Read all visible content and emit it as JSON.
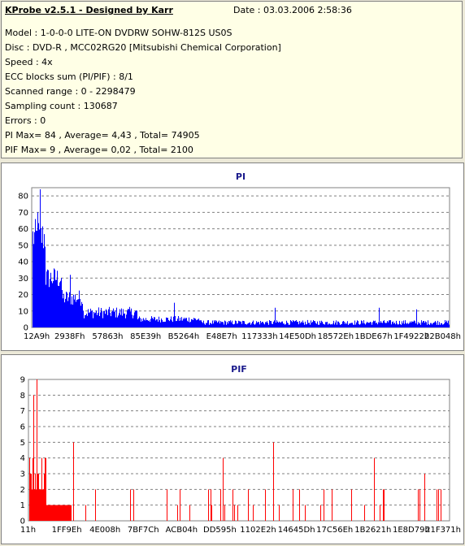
{
  "info": {
    "title": "KProbe v2.5.1 - Designed by Karr",
    "date": "Date : 03.03.2006 2:58:36",
    "lines": [
      "Model : 1-0-0-0 LITE-ON DVDRW SOHW-812S  US0S",
      "Disc : DVD-R , MCC02RG20 [Mitsubishi Chemical Corporation]",
      "Speed : 4x",
      "ECC blocks sum (PI/PIF) : 8/1",
      "Scanned range : 0 - 2298479",
      "Sampling count : 130687",
      "Errors : 0",
      "PI Max= 84 , Average= 4,43 , Total= 74905",
      "PIF Max= 9 , Average= 0,02 , Total= 2100"
    ]
  },
  "chart_data": [
    {
      "type": "bar",
      "title": "PI",
      "color": "#0000ff",
      "ylim": [
        0,
        85
      ],
      "yticks": [
        0,
        10,
        20,
        30,
        40,
        50,
        60,
        70,
        80
      ],
      "grid": true,
      "xticks": [
        "12A9h",
        "2938Fh",
        "57863h",
        "85E39h",
        "B5264h",
        "E48E7h",
        "117333h",
        "14E50Dh",
        "18572Eh",
        "1BDE67h",
        "1F4922h",
        "22B048h"
      ],
      "segments": [
        {
          "from": 0.0,
          "to": 0.03,
          "base": 55,
          "noise": 22
        },
        {
          "from": 0.03,
          "to": 0.07,
          "base": 30,
          "noise": 14
        },
        {
          "from": 0.07,
          "to": 0.12,
          "base": 18,
          "noise": 10
        },
        {
          "from": 0.12,
          "to": 0.25,
          "base": 9,
          "noise": 7
        },
        {
          "from": 0.25,
          "to": 0.4,
          "base": 5,
          "noise": 4
        },
        {
          "from": 0.4,
          "to": 1.0,
          "base": 3,
          "noise": 3
        }
      ],
      "peaks": [
        {
          "x": 0.018,
          "y": 84
        },
        {
          "x": 0.012,
          "y": 70
        },
        {
          "x": 0.09,
          "y": 32
        },
        {
          "x": 0.34,
          "y": 15
        },
        {
          "x": 0.58,
          "y": 12
        },
        {
          "x": 0.83,
          "y": 12
        },
        {
          "x": 0.92,
          "y": 11
        }
      ]
    },
    {
      "type": "bar",
      "title": "PIF",
      "color": "#ff0000",
      "ylim": [
        0,
        9
      ],
      "yticks": [
        0,
        1,
        2,
        3,
        4,
        5,
        6,
        7,
        8,
        9
      ],
      "grid": true,
      "xticks": [
        "11h",
        "1FF9Eh",
        "4E008h",
        "7BF7Ch",
        "ACB04h",
        "DD595h",
        "1102E2h",
        "14645Dh",
        "17C56Eh",
        "1B2621h",
        "1E8D79h",
        "21F371h"
      ],
      "segments": [
        {
          "from": 0.0,
          "to": 0.04,
          "base": 3,
          "noise": 3
        },
        {
          "from": 0.04,
          "to": 0.1,
          "base": 1,
          "noise": 1
        },
        {
          "from": 0.1,
          "to": 1.0,
          "base": 0,
          "noise": 0
        }
      ],
      "peaks": [
        {
          "x": 0.017,
          "y": 9
        },
        {
          "x": 0.01,
          "y": 8
        },
        {
          "x": 0.105,
          "y": 5
        },
        {
          "x": 0.46,
          "y": 4
        },
        {
          "x": 0.58,
          "y": 5
        },
        {
          "x": 0.82,
          "y": 4
        },
        {
          "x": 0.94,
          "y": 3
        },
        {
          "x": 0.97,
          "y": 2
        },
        {
          "x": 0.24,
          "y": 2
        },
        {
          "x": 0.52,
          "y": 2
        },
        {
          "x": 0.7,
          "y": 2
        }
      ]
    }
  ]
}
